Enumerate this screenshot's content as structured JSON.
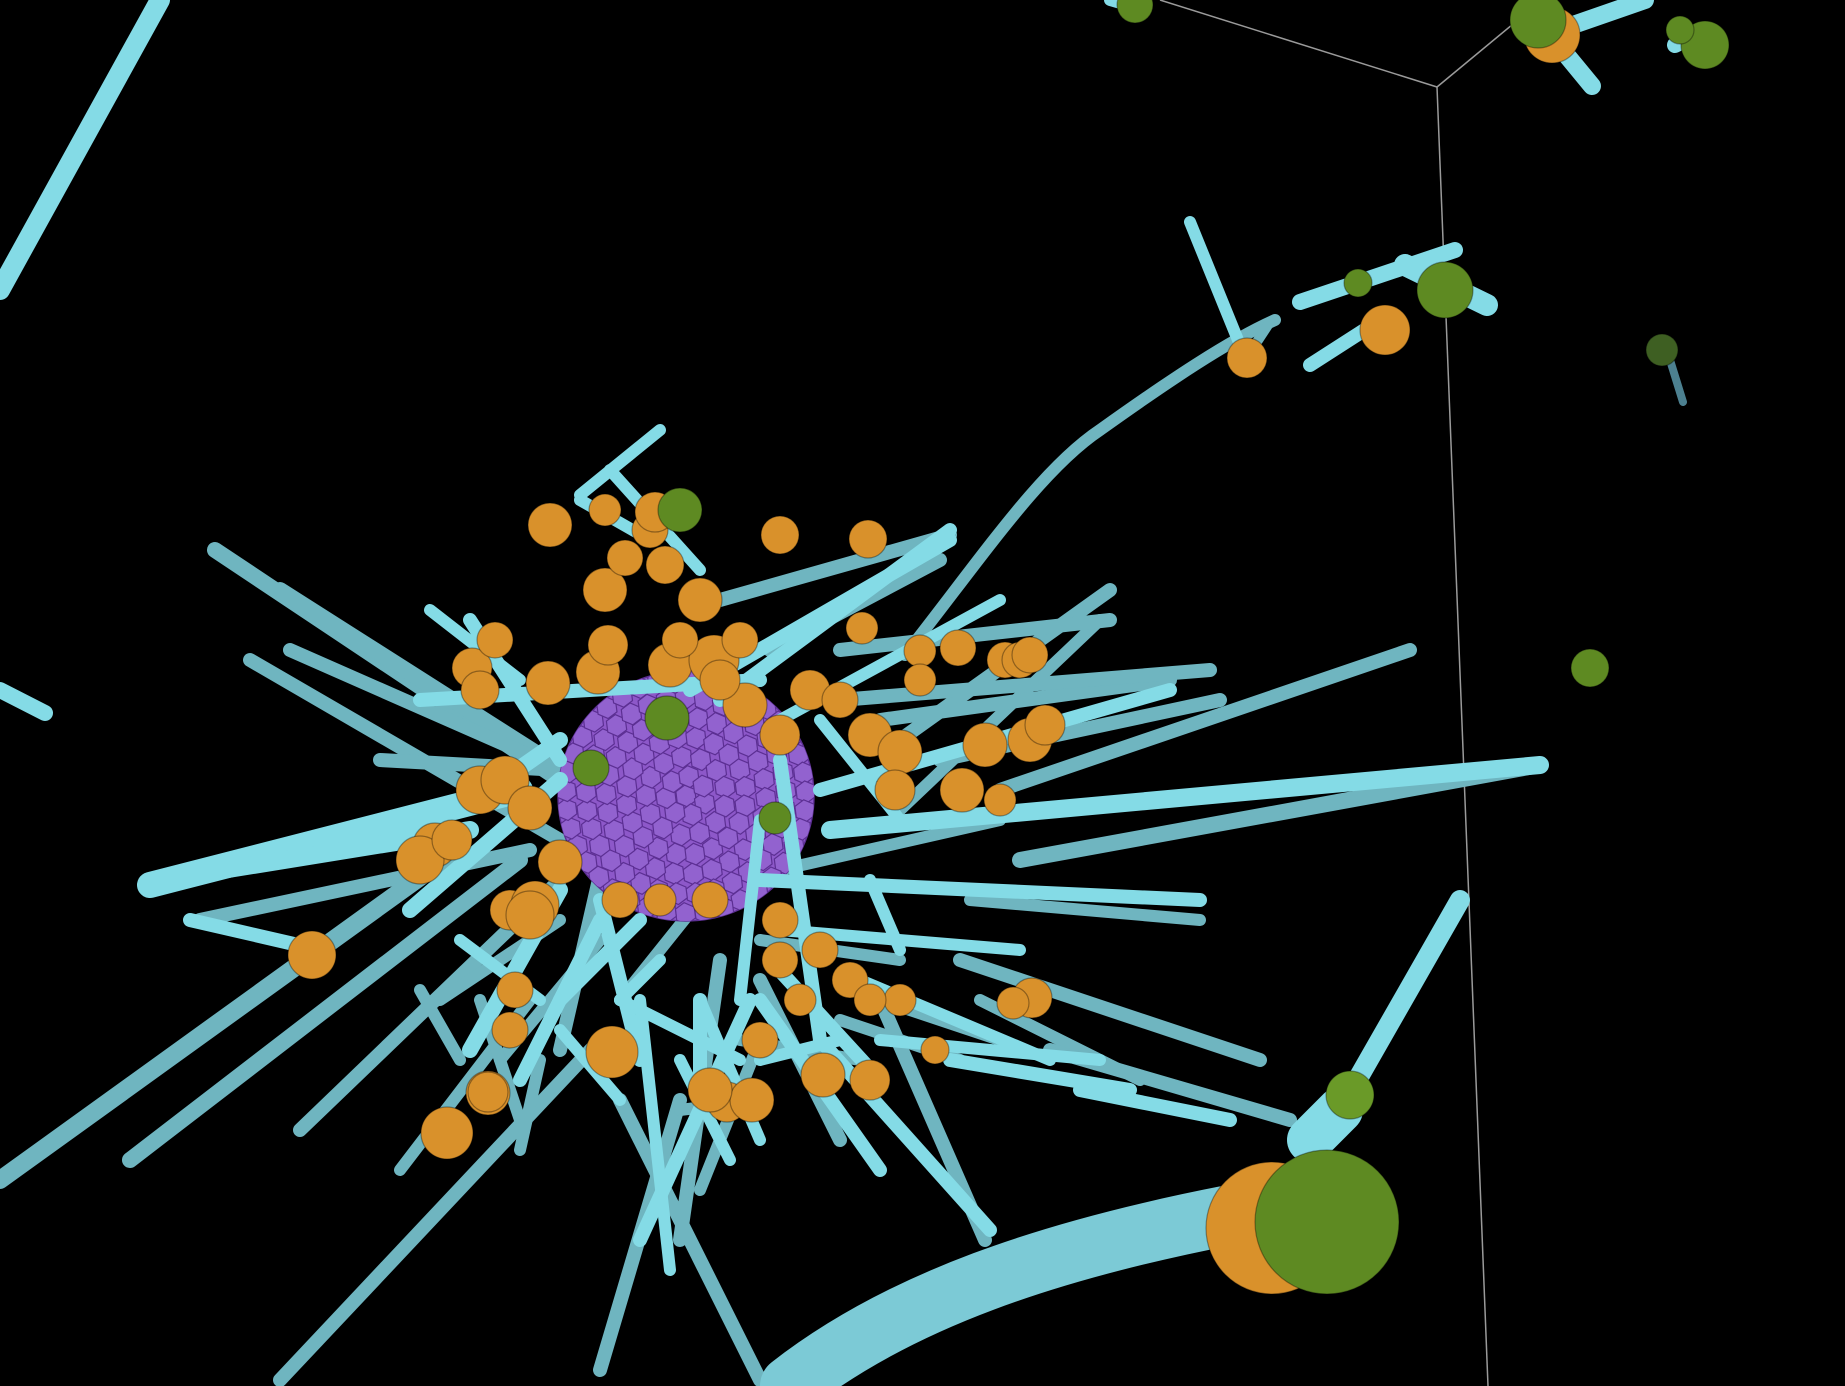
{
  "scene": {
    "background": "#000000",
    "colors": {
      "microtubule": "#84dbe6",
      "microtubule_dim": "#6fb5c0",
      "minus_end_bead": "#d9912b",
      "plus_end_bead": "#5e8a22",
      "centrosome": "#8d58c9",
      "bounding_box": "#9a9a9a"
    }
  }
}
